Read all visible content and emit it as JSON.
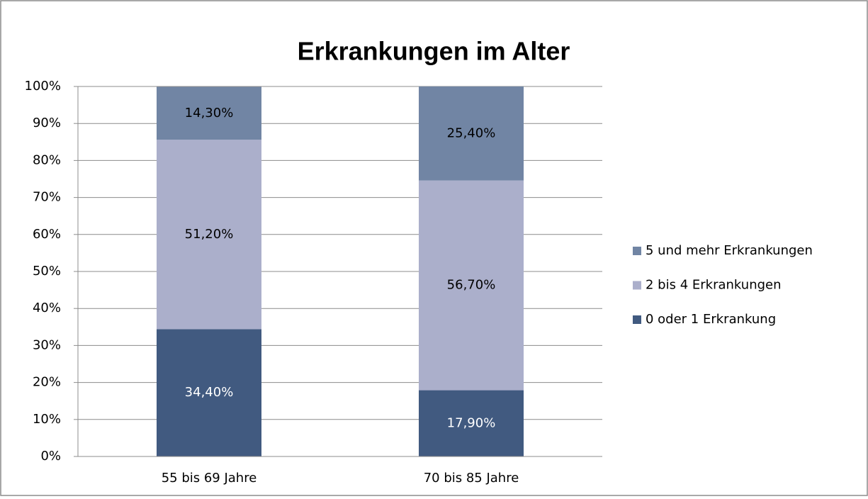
{
  "chart_data": {
    "type": "stacked_bar",
    "title": "Erkrankungen im Alter",
    "categories": [
      "55 bis 69 Jahre",
      "70 bis 85 Jahre"
    ],
    "series": [
      {
        "name": "0 oder 1 Erkrankung",
        "color": "#415a80",
        "values": [
          34.4,
          17.9
        ],
        "value_labels": [
          "34,40%",
          "17,90%"
        ]
      },
      {
        "name": "2 bis 4 Erkrankungen",
        "color": "#abafcb",
        "values": [
          51.2,
          56.7
        ],
        "value_labels": [
          "51,20%",
          "56,70%"
        ]
      },
      {
        "name": "5 und mehr Erkrankungen",
        "color": "#7185a4",
        "values": [
          14.3,
          25.4
        ],
        "value_labels": [
          "14,30%",
          "25,40%"
        ]
      }
    ],
    "ylim": [
      0,
      100
    ],
    "yticks": [
      {
        "value": 0,
        "label": "0%"
      },
      {
        "value": 10,
        "label": "10%"
      },
      {
        "value": 20,
        "label": "20%"
      },
      {
        "value": 30,
        "label": "30%"
      },
      {
        "value": 40,
        "label": "40%"
      },
      {
        "value": 50,
        "label": "50%"
      },
      {
        "value": 60,
        "label": "60%"
      },
      {
        "value": 70,
        "label": "70%"
      },
      {
        "value": 80,
        "label": "80%"
      },
      {
        "value": 90,
        "label": "90%"
      },
      {
        "value": 100,
        "label": "100%"
      }
    ],
    "grid": true,
    "legend": "right"
  }
}
